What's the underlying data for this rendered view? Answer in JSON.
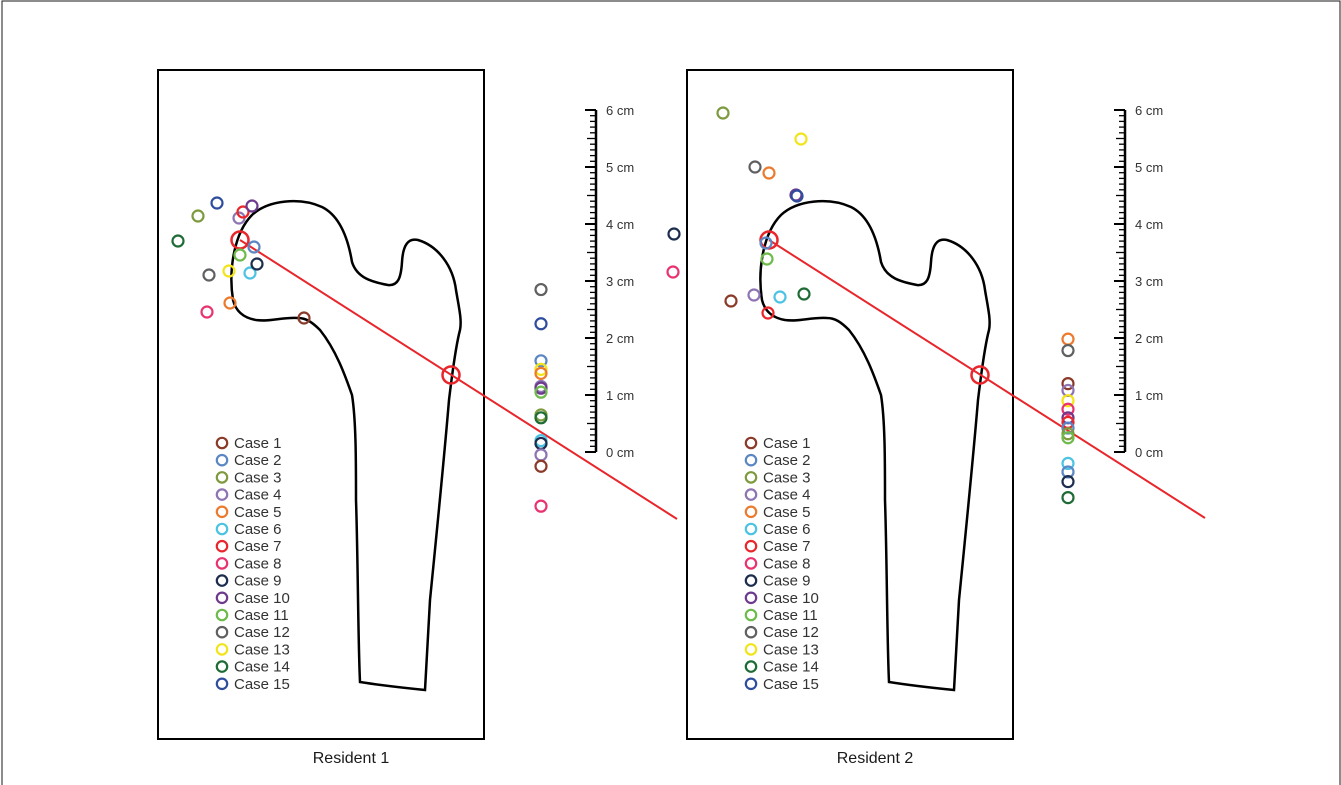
{
  "colors": {
    "red_line": "#e8262b",
    "outline": "#000000",
    "frame": "#000000"
  },
  "cases": [
    {
      "label": "Case 1",
      "color": "#8b3a2a"
    },
    {
      "label": "Case 2",
      "color": "#5b86c4"
    },
    {
      "label": "Case 3",
      "color": "#7d9a3e"
    },
    {
      "label": "Case 4",
      "color": "#8e74b3"
    },
    {
      "label": "Case 5",
      "color": "#ec7a2d"
    },
    {
      "label": "Case 6",
      "color": "#4cc3e3"
    },
    {
      "label": "Case 7",
      "color": "#e8262b"
    },
    {
      "label": "Case 8",
      "color": "#e8336f"
    },
    {
      "label": "Case 9",
      "color": "#1c2d4e"
    },
    {
      "label": "Case 10",
      "color": "#6d3a8e"
    },
    {
      "label": "Case 11",
      "color": "#6dbb4a"
    },
    {
      "label": "Case 12",
      "color": "#5f6061"
    },
    {
      "label": "Case 13",
      "color": "#f2e41a"
    },
    {
      "label": "Case 14",
      "color": "#1e6b35"
    },
    {
      "label": "Case 15",
      "color": "#2f4d9e"
    }
  ],
  "scale": {
    "labels": [
      "0 cm",
      "1 cm",
      "2 cm",
      "3 cm",
      "4 cm",
      "5 cm",
      "6 cm"
    ]
  },
  "panels": [
    {
      "caption": "Resident 1",
      "projections_cm": [
        {
          "case": 12,
          "cm": 2.85
        },
        {
          "case": 15,
          "cm": 2.25
        },
        {
          "case": 2,
          "cm": 1.6
        },
        {
          "case": 13,
          "cm": 1.45
        },
        {
          "case": 5,
          "cm": 1.38
        },
        {
          "case": 4,
          "cm": 1.15
        },
        {
          "case": 10,
          "cm": 1.12
        },
        {
          "case": 11,
          "cm": 1.05
        },
        {
          "case": 3,
          "cm": 0.65
        },
        {
          "case": 14,
          "cm": 0.6
        },
        {
          "case": 6,
          "cm": 0.2
        },
        {
          "case": 9,
          "cm": 0.15
        },
        {
          "case": 4,
          "cm": -0.05
        },
        {
          "case": 1,
          "cm": -0.25
        },
        {
          "case": 8,
          "cm": -0.95
        }
      ]
    },
    {
      "caption": "Resident 2",
      "projections_cm": [
        {
          "case": 5,
          "cm": 1.98
        },
        {
          "case": 12,
          "cm": 1.78
        },
        {
          "case": 1,
          "cm": 1.2
        },
        {
          "case": 4,
          "cm": 1.08
        },
        {
          "case": 13,
          "cm": 0.9
        },
        {
          "case": 8,
          "cm": 0.75
        },
        {
          "case": 10,
          "cm": 0.6
        },
        {
          "case": 7,
          "cm": 0.52
        },
        {
          "case": 2,
          "cm": 0.42
        },
        {
          "case": 3,
          "cm": 0.32
        },
        {
          "case": 11,
          "cm": 0.25
        },
        {
          "case": 6,
          "cm": -0.2
        },
        {
          "case": 2,
          "cm": -0.35
        },
        {
          "case": 9,
          "cm": -0.52
        },
        {
          "case": 14,
          "cm": -0.8
        }
      ]
    }
  ]
}
